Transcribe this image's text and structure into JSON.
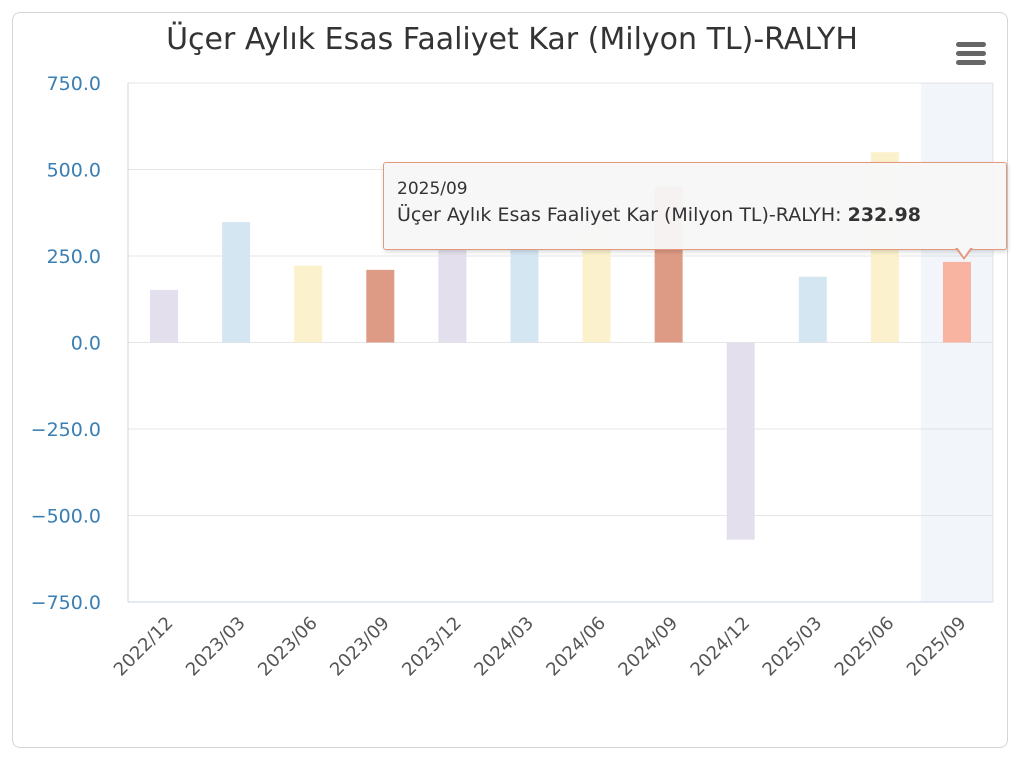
{
  "chart_data": {
    "type": "bar",
    "title": "Üçer Aylık Esas Faaliyet Kar (Milyon TL)-RALYH",
    "categories": [
      "2022/12",
      "2023/03",
      "2023/06",
      "2023/09",
      "2023/12",
      "2024/03",
      "2024/06",
      "2024/09",
      "2024/12",
      "2025/03",
      "2025/06",
      "2025/09"
    ],
    "series": [
      {
        "values": [
          152,
          348,
          222,
          210,
          270,
          270,
          330,
          450,
          -570,
          190,
          550,
          232.98
        ]
      }
    ],
    "bar_colors": [
      "#e3dfec",
      "#d5e6f3",
      "#fbf1cc",
      "#dd9b85",
      "#e3dfec",
      "#d5e6f3",
      "#fbf1cc",
      "#dd9b85",
      "#e3dfec",
      "#d5e6f3",
      "#fbf1cc",
      "#f8b4a0"
    ],
    "ylim": [
      -750,
      750
    ],
    "yticks": [
      "750.0",
      "500.0",
      "250.0",
      "0.0",
      "−250.0",
      "−500.0",
      "−750.0"
    ],
    "ytick_values": [
      750,
      500,
      250,
      0,
      -250,
      -500,
      -750
    ],
    "grid": true,
    "highlighted_category": "2025/09",
    "axis_label_color": "#3a7fb3",
    "tick_label_color": "#555555"
  },
  "tooltip": {
    "date": "2025/09",
    "series_label": "Üçer Aylık Esas Faaliyet Kar (Milyon TL)-RALYH: ",
    "value": "232.98"
  },
  "menu": {
    "icon": "hamburger-menu-icon"
  }
}
